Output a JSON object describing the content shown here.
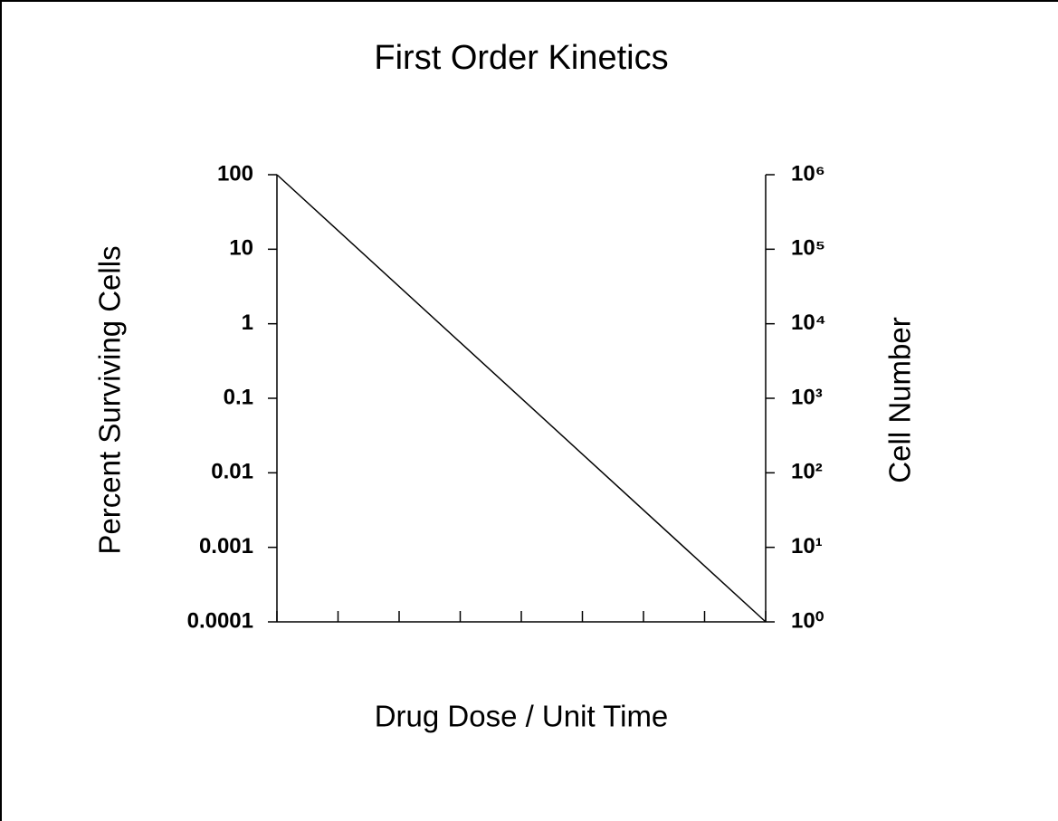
{
  "chart_data": {
    "type": "line",
    "title": "First Order Kinetics",
    "x_label": "Drug Dose / Unit Time",
    "y_label": "Percent Surviving Cells",
    "y2_label": "Cell Number",
    "x": [
      0,
      8
    ],
    "series": [
      {
        "color": "#000000",
        "values": [
          100,
          0.0001
        ]
      }
    ],
    "xlim": [
      0,
      8
    ],
    "xticks": [
      0,
      1,
      2,
      3,
      4,
      5,
      6,
      7,
      8
    ],
    "ylim": [
      0.0001,
      100
    ],
    "ylog": true,
    "yticks": [
      100,
      10,
      1,
      0.1,
      0.01,
      0.001,
      0.0001
    ],
    "y2lim": [
      1,
      1000000
    ],
    "y2log": true,
    "y2ticks": [
      {
        "value": 1000000,
        "label": "10⁶"
      },
      {
        "value": 100000,
        "label": "10⁵"
      },
      {
        "value": 10000,
        "label": "10⁴"
      },
      {
        "value": 1000,
        "label": "10³"
      },
      {
        "value": 100,
        "label": "10²"
      },
      {
        "value": 10,
        "label": "10¹"
      },
      {
        "value": 1,
        "label": "10⁰"
      }
    ],
    "grid": false
  }
}
